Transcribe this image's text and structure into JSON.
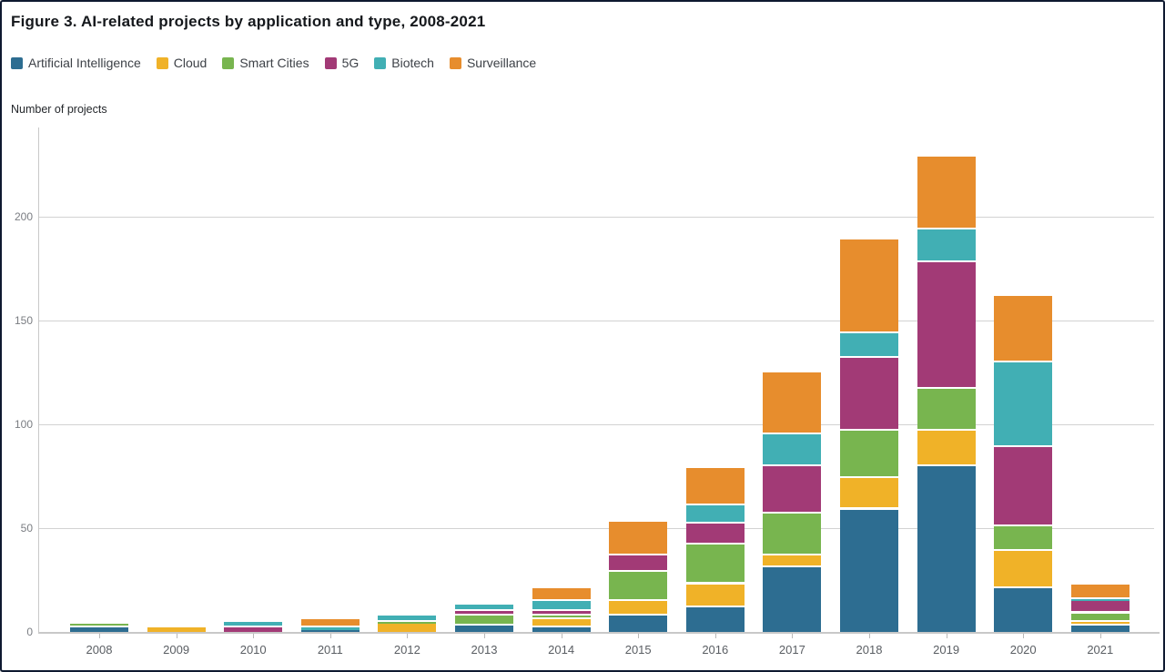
{
  "figure": {
    "title": "Figure 3. AI-related projects by application and type, 2008-2021"
  },
  "chart_data": {
    "type": "bar",
    "stacked": true,
    "title": "Figure 3. AI-related projects by application and type, 2008-2021",
    "xlabel": "",
    "ylabel": "Number of projects",
    "ylim": [
      0,
      240
    ],
    "y_ticks": [
      0,
      50,
      100,
      150,
      200
    ],
    "grid": true,
    "legend_position": "top",
    "categories": [
      "2008",
      "2009",
      "2010",
      "2011",
      "2012",
      "2013",
      "2014",
      "2015",
      "2016",
      "2017",
      "2018",
      "2019",
      "2020",
      "2021"
    ],
    "series": [
      {
        "name": "Artificial Intelligence",
        "color": "#2d6d91",
        "values": [
          2,
          0,
          0,
          1,
          0,
          3,
          2,
          8,
          12,
          31,
          59,
          80,
          21,
          3
        ]
      },
      {
        "name": "Cloud",
        "color": "#f0b228",
        "values": [
          0,
          2,
          0,
          0,
          4,
          0,
          4,
          7,
          11,
          6,
          15,
          17,
          18,
          2
        ]
      },
      {
        "name": "Smart Cities",
        "color": "#78b54f",
        "values": [
          2,
          0,
          0,
          0,
          1,
          5,
          2,
          14,
          19,
          20,
          23,
          20,
          12,
          4
        ]
      },
      {
        "name": "5G",
        "color": "#a23a76",
        "values": [
          0,
          0,
          2,
          0,
          0,
          2,
          2,
          8,
          10,
          23,
          35,
          61,
          38,
          6
        ]
      },
      {
        "name": "Biotech",
        "color": "#41afb4",
        "values": [
          0,
          0,
          3,
          1,
          3,
          3,
          5,
          0,
          9,
          15,
          12,
          16,
          41,
          1
        ]
      },
      {
        "name": "Surveillance",
        "color": "#e78d2d",
        "values": [
          0,
          0,
          0,
          4,
          0,
          0,
          6,
          16,
          18,
          30,
          45,
          35,
          32,
          7
        ]
      }
    ]
  }
}
